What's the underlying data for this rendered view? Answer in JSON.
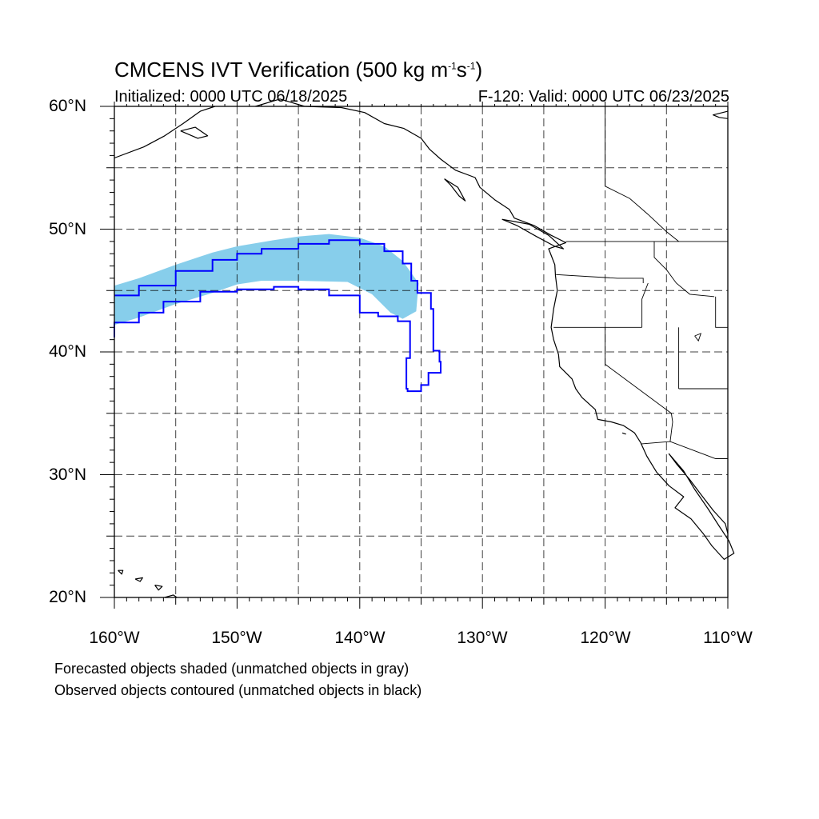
{
  "title": {
    "prefix": "CMCENS IVT Verification (500 kg m",
    "exp1": "-1",
    "mid": "s",
    "exp2": "-1",
    "suffix": ")"
  },
  "subtitle_left": "Initialized: 0000 UTC 06/18/2025",
  "subtitle_right": "F-120: Valid: 0000 UTC 06/23/2025",
  "lat_labels": [
    "60°N",
    "50°N",
    "40°N",
    "30°N",
    "20°N"
  ],
  "lon_labels": [
    "160°W",
    "150°W",
    "140°W",
    "130°W",
    "120°W",
    "110°W"
  ],
  "notes": [
    "Forecasted objects shaded (unmatched objects in gray)",
    "Observed objects contoured (unmatched objects in black)"
  ],
  "colors": {
    "forecast_fill": "#87ceeb",
    "observed_contour": "#0000ff",
    "coastline": "#000000",
    "grid": "#000000"
  },
  "map": {
    "projection": "cylindrical equidistant",
    "lon_range": [
      -160,
      -110
    ],
    "lat_range": [
      20,
      60
    ],
    "grid_spacing_deg": 5,
    "grid": true
  },
  "forecast_object": {
    "fill": "#87ceeb",
    "outline": [
      [
        -160,
        45.4
      ],
      [
        -158,
        46
      ],
      [
        -155,
        47.1
      ],
      [
        -152,
        48.1
      ],
      [
        -150,
        48.6
      ],
      [
        -147,
        49.1
      ],
      [
        -145,
        49.4
      ],
      [
        -142.5,
        49.6
      ],
      [
        -140,
        49.3
      ],
      [
        -138,
        48.6
      ],
      [
        -136.5,
        47.4
      ],
      [
        -135.2,
        45.6
      ],
      [
        -135.4,
        43.3
      ],
      [
        -136.5,
        42.7
      ],
      [
        -137.5,
        43.2
      ],
      [
        -139,
        44.7
      ],
      [
        -141,
        45.7
      ],
      [
        -145,
        45.8
      ],
      [
        -148,
        45.8
      ],
      [
        -150,
        45.5
      ],
      [
        -152,
        44.8
      ],
      [
        -155,
        43.9
      ],
      [
        -158,
        42.8
      ],
      [
        -160,
        42.2
      ]
    ]
  },
  "observed_object": {
    "color": "#0000ff",
    "outline": [
      [
        -160,
        44.6
      ],
      [
        -158,
        45.4
      ],
      [
        -155,
        46.6
      ],
      [
        -152,
        47.5
      ],
      [
        -150,
        48
      ],
      [
        -148,
        48.4
      ],
      [
        -145,
        48.8
      ],
      [
        -142.5,
        49.1
      ],
      [
        -140,
        48.8
      ],
      [
        -138,
        48.2
      ],
      [
        -136.5,
        47.2
      ],
      [
        -135.8,
        45.8
      ],
      [
        -135.3,
        44.8
      ],
      [
        -134.2,
        43.5
      ],
      [
        -134,
        40.1
      ],
      [
        -133.5,
        39.2
      ],
      [
        -133.4,
        38.3
      ],
      [
        -134.4,
        37.3
      ],
      [
        -135,
        36.8
      ],
      [
        -136.1,
        37
      ],
      [
        -136.2,
        39.5
      ],
      [
        -135.9,
        42.5
      ],
      [
        -136.9,
        42.9
      ],
      [
        -138.5,
        43.2
      ],
      [
        -140,
        44.6
      ],
      [
        -142.5,
        45.1
      ],
      [
        -145,
        45.3
      ],
      [
        -147,
        45.1
      ],
      [
        -150,
        44.9
      ],
      [
        -153,
        44.1
      ],
      [
        -156,
        43.2
      ],
      [
        -158,
        42.4
      ],
      [
        -160,
        41.2
      ]
    ]
  }
}
